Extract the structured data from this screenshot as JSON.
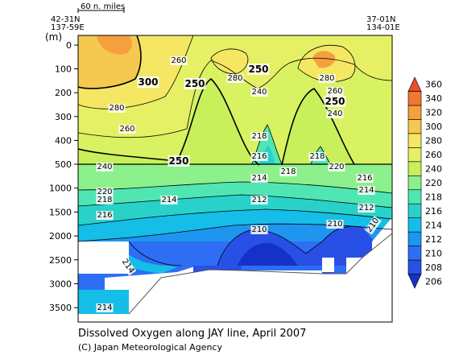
{
  "chart_data": {
    "type": "heatmap",
    "title": "Dissolved Oxygen along JAY line, April 2007",
    "credit": "(C) Japan Meteorological Agency",
    "scale_bar_label": "60 n. miles",
    "start_station": {
      "lat": "42-31N",
      "lon": "137-59E"
    },
    "end_station": {
      "lat": "37-01N",
      "lon": "134-01E"
    },
    "ylabel": "(m)",
    "y_ticks_upper": [
      0,
      100,
      200,
      300,
      400,
      500
    ],
    "y_ticks_lower": [
      1000,
      1500,
      2000,
      2500,
      3000,
      3500
    ],
    "colorbar": {
      "levels": [
        206,
        208,
        210,
        212,
        214,
        216,
        218,
        220,
        240,
        260,
        280,
        300,
        320,
        340,
        360
      ],
      "colors": [
        "#1432c8",
        "#2850e6",
        "#2d6ef5",
        "#1e96f0",
        "#14bee6",
        "#28d2c8",
        "#50e6b4",
        "#8cf08c",
        "#c8f05a",
        "#e6f064",
        "#f5e664",
        "#f5c850",
        "#f5a03c",
        "#f07832",
        "#e65028"
      ]
    },
    "contour_labels": [
      {
        "text": "260"
      },
      {
        "text": "300"
      },
      {
        "text": "250"
      },
      {
        "text": "280"
      },
      {
        "text": "250"
      },
      {
        "text": "280"
      },
      {
        "text": "240"
      },
      {
        "text": "280"
      },
      {
        "text": "260"
      },
      {
        "text": "250"
      },
      {
        "text": "240"
      },
      {
        "text": "260"
      },
      {
        "text": "250"
      },
      {
        "text": "218"
      },
      {
        "text": "216"
      },
      {
        "text": "218"
      },
      {
        "text": "240"
      },
      {
        "text": "218"
      },
      {
        "text": "220"
      },
      {
        "text": "216"
      },
      {
        "text": "214"
      },
      {
        "text": "220"
      },
      {
        "text": "218"
      },
      {
        "text": "214"
      },
      {
        "text": "212"
      },
      {
        "text": "214"
      },
      {
        "text": "216"
      },
      {
        "text": "212"
      },
      {
        "text": "210"
      },
      {
        "text": "210"
      },
      {
        "text": "210"
      },
      {
        "text": "214"
      },
      {
        "text": "214"
      }
    ]
  },
  "colors": {
    "land": "#ffffff",
    "contour": "#000000",
    "frame": "#000000"
  }
}
